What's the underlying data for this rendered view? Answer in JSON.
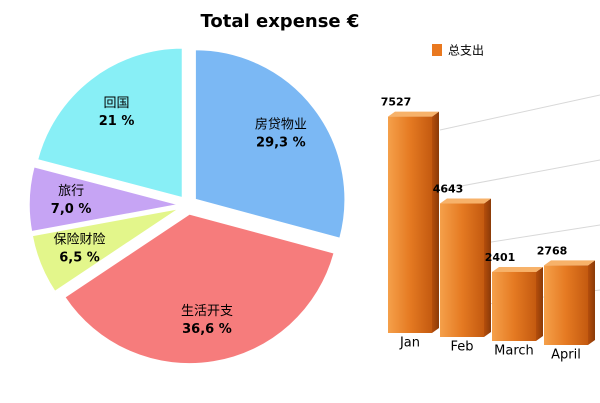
{
  "title": "Total expense €",
  "chart_data": [
    {
      "type": "pie",
      "categories": [
        "房贷物业",
        "生活开支",
        "保险财险",
        "旅行",
        "回国"
      ],
      "values": [
        29.3,
        36.6,
        6.5,
        7.0,
        21
      ],
      "value_labels": [
        "29,3 %",
        "36,6 %",
        "6,5 %",
        "7,0 %",
        "21 %"
      ],
      "colors": [
        "#7bb8f4",
        "#f67c7c",
        "#e3f68b",
        "#c6a4f4",
        "#88eff6"
      ]
    },
    {
      "type": "bar",
      "categories": [
        "Jan",
        "Feb",
        "March",
        "April"
      ],
      "series": [
        {
          "name": "总支出",
          "color": "#e9781f",
          "values": [
            7527,
            4643,
            2401,
            2768
          ]
        }
      ],
      "ylim": [
        0,
        8000
      ]
    }
  ]
}
